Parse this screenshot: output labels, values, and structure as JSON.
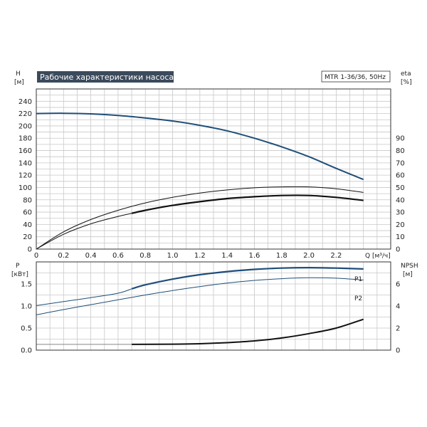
{
  "chart_data": [
    {
      "type": "line",
      "title": "Рабочие характеристики насоса",
      "model_label": "MTR 1-36/36, 50Hz",
      "x_axis": {
        "label": "Q [м³/ч]",
        "ticks": [
          0,
          0.2,
          0.4,
          0.6,
          0.8,
          1.0,
          1.2,
          1.4,
          1.6,
          1.8,
          2.0,
          2.2
        ],
        "tick_labels": [
          "0",
          "0.2",
          "0.4",
          "0.6",
          "0.8",
          "1.0",
          "1.2",
          "1.4",
          "1.6",
          "1.8",
          "2.0",
          "2.2"
        ],
        "range": [
          0,
          2.6
        ]
      },
      "y_axis_left": {
        "label_top": "H",
        "label_unit": "[м]",
        "ticks": [
          0,
          20,
          40,
          60,
          80,
          100,
          120,
          140,
          160,
          180,
          200,
          220,
          240
        ],
        "range": [
          0,
          260
        ]
      },
      "y_axis_right": {
        "label_top": "eta",
        "label_unit": "[%]",
        "ticks": [
          0,
          10,
          20,
          30,
          40,
          50,
          60,
          70,
          80,
          90
        ],
        "range": [
          0,
          130
        ]
      },
      "grid": true,
      "series": [
        {
          "key": "head",
          "axis": "left",
          "color": "#1f4e79",
          "x": [
            0,
            0.2,
            0.4,
            0.6,
            0.8,
            1.0,
            1.2,
            1.4,
            1.6,
            1.8,
            2.0,
            2.2,
            2.4
          ],
          "y": [
            220,
            220.5,
            219.5,
            217,
            213,
            208,
            201,
            192,
            180,
            166,
            150,
            131,
            113
          ]
        },
        {
          "key": "eta_thin",
          "axis": "left",
          "color": "#111111",
          "x": [
            0,
            0.2,
            0.4,
            0.6,
            0.8,
            1.0,
            1.2,
            1.4,
            1.6,
            1.8,
            2.0,
            2.2,
            2.4
          ],
          "y": [
            0,
            28,
            48,
            63,
            75,
            84,
            91,
            96,
            99.5,
            101,
            101,
            98,
            92
          ]
        },
        {
          "key": "eta_thick_lower",
          "axis": "left",
          "color": "#111111",
          "x": [
            0,
            0.2,
            0.4,
            0.6,
            0.7,
            0.8,
            1.0,
            1.2,
            1.4,
            1.6,
            1.8,
            2.0,
            2.2,
            2.4
          ],
          "y": [
            0,
            24,
            41,
            53,
            58,
            63,
            71,
            77,
            82,
            85,
            87,
            87,
            84,
            79
          ]
        }
      ]
    },
    {
      "type": "line",
      "x_axis": {
        "range": [
          0,
          2.6
        ],
        "ticks": [
          0,
          0.2,
          0.4,
          0.6,
          0.8,
          1.0,
          1.2,
          1.4,
          1.6,
          1.8,
          2.0,
          2.2
        ]
      },
      "y_axis_left": {
        "label_top": "P",
        "label_unit": "[кВт]",
        "ticks": [
          0.0,
          0.5,
          1.0,
          1.5
        ],
        "tick_labels": [
          "0.0",
          "0.5",
          "1.0",
          "1.5"
        ],
        "range": [
          0,
          2.0
        ]
      },
      "y_axis_right": {
        "label_top": "NPSH",
        "label_unit": "[м]",
        "ticks": [
          0,
          2,
          4,
          6
        ],
        "range": [
          0,
          8
        ]
      },
      "grid": true,
      "series": [
        {
          "name": "P1",
          "axis": "left",
          "color": "#1f4e79",
          "x": [
            0,
            0.2,
            0.4,
            0.6,
            0.7,
            0.8,
            1.0,
            1.2,
            1.4,
            1.6,
            1.8,
            2.0,
            2.2,
            2.4
          ],
          "y": [
            1.01,
            1.1,
            1.19,
            1.29,
            1.39,
            1.48,
            1.61,
            1.71,
            1.78,
            1.83,
            1.86,
            1.87,
            1.86,
            1.84
          ]
        },
        {
          "name": "P2",
          "axis": "left",
          "color": "#1f4e79",
          "x": [
            0,
            0.2,
            0.4,
            0.6,
            0.8,
            1.0,
            1.2,
            1.4,
            1.6,
            1.8,
            2.0,
            2.2,
            2.4
          ],
          "y": [
            0.8,
            0.92,
            1.03,
            1.14,
            1.25,
            1.35,
            1.44,
            1.52,
            1.58,
            1.62,
            1.64,
            1.63,
            1.59
          ]
        },
        {
          "key": "npsh_thin",
          "axis": "right",
          "color": "#888888",
          "x": [
            0,
            0.7
          ],
          "y": [
            0.52,
            0.52
          ]
        },
        {
          "key": "npsh",
          "axis": "right",
          "color": "#111111",
          "x": [
            0.7,
            1.0,
            1.2,
            1.4,
            1.6,
            1.8,
            2.0,
            2.2,
            2.4
          ],
          "y": [
            0.52,
            0.54,
            0.58,
            0.68,
            0.84,
            1.1,
            1.5,
            2.0,
            2.8
          ]
        }
      ]
    }
  ]
}
